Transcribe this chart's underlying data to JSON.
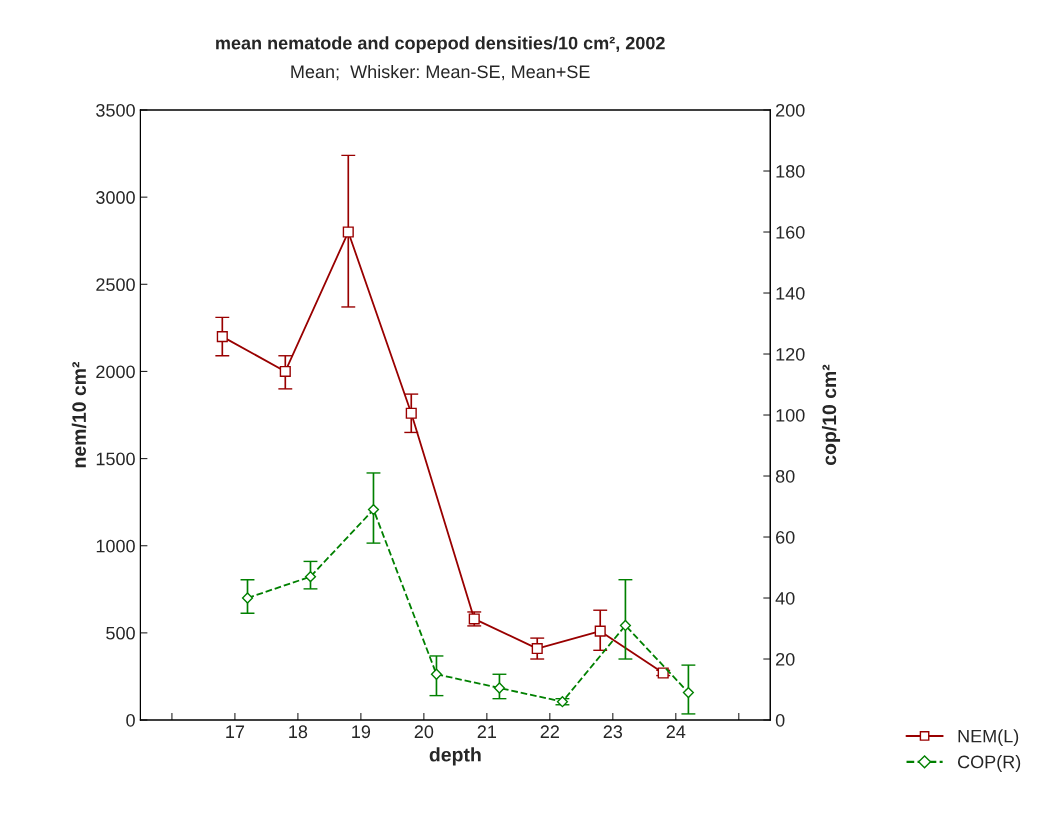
{
  "chart_data": {
    "type": "line",
    "title": "mean nematode and copepod densities/10 cm², 2002",
    "subtitle": "Mean;  Whisker: Mean-SE, Mean+SE",
    "xlabel": "depth",
    "ylabel": "nem/10 cm²",
    "y2label": "cop/10 cm²",
    "xlim": [
      15.5,
      25.5
    ],
    "xticks": [
      {
        "value": 16,
        "label": null
      },
      17,
      18,
      19,
      20,
      21,
      22,
      23,
      24,
      {
        "value": 25,
        "label": null
      }
    ],
    "ylim": [
      0,
      3500
    ],
    "yticks": [
      0,
      500,
      1000,
      1500,
      2000,
      2500,
      3000,
      3500
    ],
    "y2lim": [
      0,
      200
    ],
    "y2ticks": [
      0,
      20,
      40,
      60,
      80,
      100,
      120,
      140,
      160,
      180,
      200
    ],
    "grid": false,
    "legend": "bottom right",
    "series": [
      {
        "name": "NEM(L)",
        "color": "#990000",
        "marker": "square",
        "line_style": "solid",
        "x": [
          16.8,
          17.8,
          18.8,
          19.8,
          20.8,
          21.8,
          22.8,
          23.8
        ],
        "values": [
          2200,
          2000,
          2800,
          1760,
          580,
          410,
          510,
          270
        ],
        "errors": [
          [
            2090,
            2310
          ],
          [
            1900,
            2090
          ],
          [
            2370,
            3240
          ],
          [
            1650,
            1870
          ],
          [
            540,
            620
          ],
          [
            350,
            470
          ],
          [
            400,
            630
          ],
          [
            255,
            285
          ]
        ]
      },
      {
        "name": "COP(R)",
        "color": "#008000",
        "marker": "diamond",
        "line_style": "dashed",
        "axis": "y2",
        "x": [
          17.2,
          18.2,
          19.2,
          20.2,
          21.2,
          22.2,
          23.2,
          24.2
        ],
        "values": [
          40,
          47,
          69,
          15,
          10.5,
          6,
          31,
          9
        ],
        "errors": [
          [
            35,
            46
          ],
          [
            43,
            52
          ],
          [
            58,
            81
          ],
          [
            8,
            21
          ],
          [
            7,
            15
          ],
          [
            5,
            7
          ],
          [
            20,
            46
          ],
          [
            2,
            18
          ]
        ]
      }
    ]
  }
}
